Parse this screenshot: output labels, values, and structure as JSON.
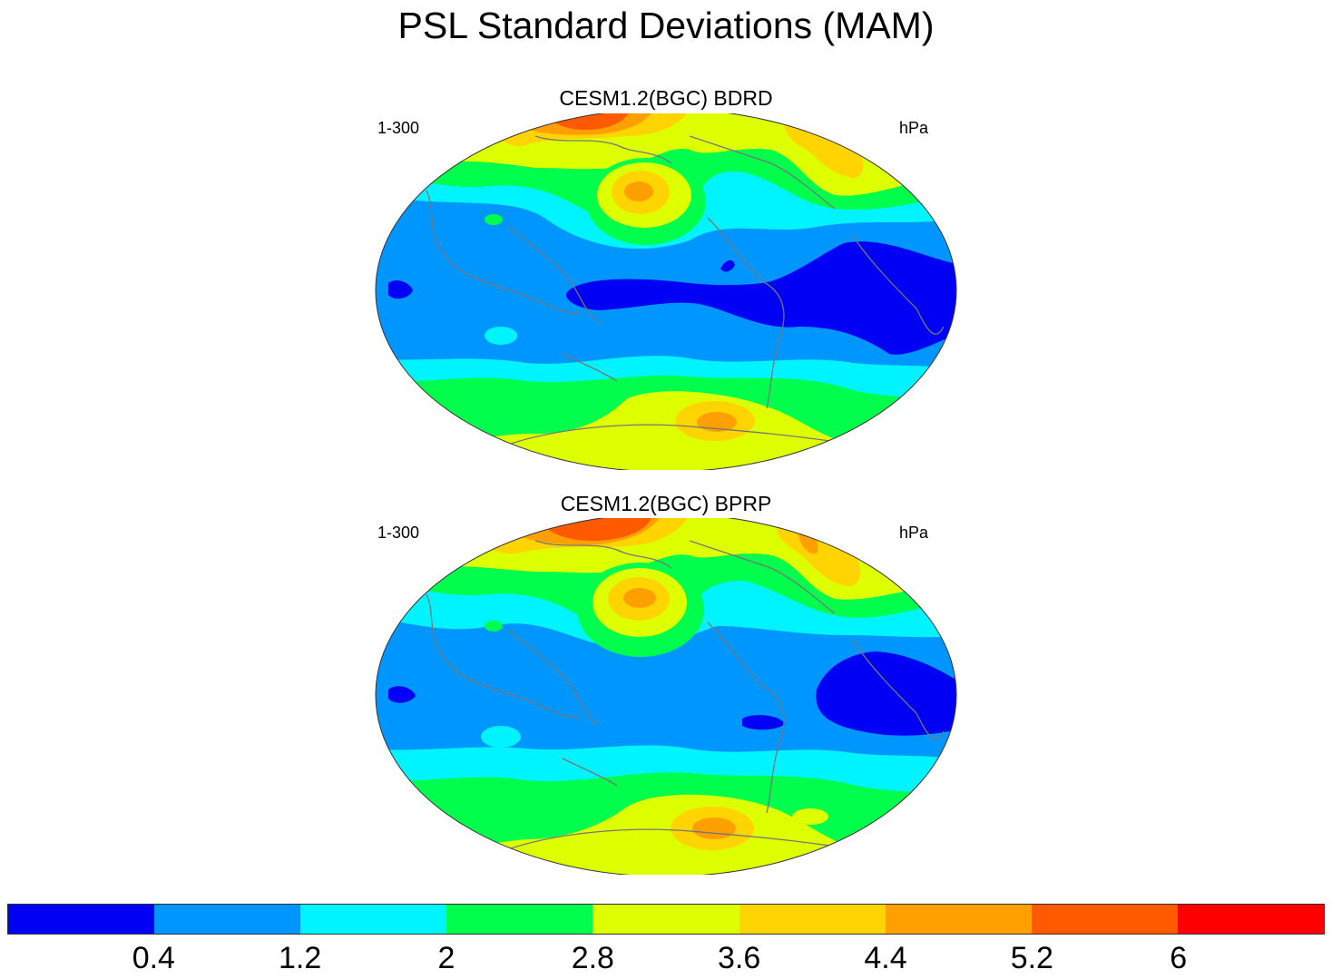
{
  "title": "PSL Standard Deviations (MAM)",
  "panels": [
    {
      "title": "CESM1.2(BGC) BDRD",
      "left_label": "1-300",
      "right_label": "hPa"
    },
    {
      "title": "CESM1.2(BGC) BPRP",
      "left_label": "1-300",
      "right_label": "hPa"
    }
  ],
  "legend": {
    "colors": [
      "#0000f4",
      "#0096ff",
      "#00f4ff",
      "#00ff4d",
      "#ddff00",
      "#ffd400",
      "#ff9f00",
      "#ff5a00",
      "#ff0000"
    ],
    "labels": [
      "0.4",
      "1.2",
      "2",
      "2.8",
      "3.6",
      "4.4",
      "5.2",
      "6"
    ]
  }
}
